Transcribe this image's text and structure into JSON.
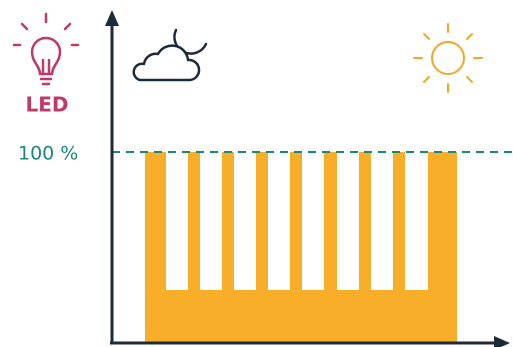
{
  "icon_label": "LED",
  "level_label": "100 %"
}
